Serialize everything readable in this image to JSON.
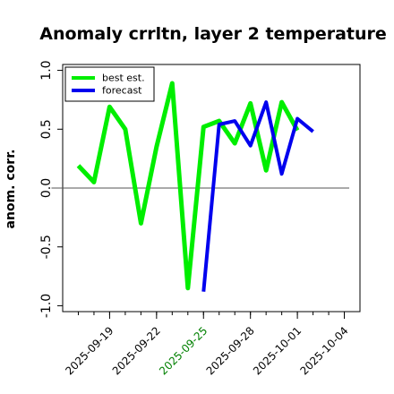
{
  "chart_data": {
    "type": "line",
    "title": "Anomaly crrltn, layer 2 temperature",
    "xlabel": "",
    "ylabel": "anom. corr.",
    "x": [
      "2025-09-17",
      "2025-09-18",
      "2025-09-19",
      "2025-09-20",
      "2025-09-21",
      "2025-09-22",
      "2025-09-23",
      "2025-09-24",
      "2025-09-25",
      "2025-09-26",
      "2025-09-27",
      "2025-09-28",
      "2025-09-29",
      "2025-09-30",
      "2025-10-01",
      "2025-10-02",
      "2025-10-03",
      "2025-10-04"
    ],
    "xlim": [
      "2025-09-16",
      "2025-10-05"
    ],
    "ylim": [
      -1.05,
      1.05
    ],
    "y_ticks": [
      -1.0,
      -0.5,
      0.0,
      0.5,
      1.0
    ],
    "y_tick_labels": [
      "-1.0",
      "-0.5",
      "0.0",
      "0.5",
      "1.0"
    ],
    "x_ticks": [
      "2025-09-19",
      "2025-09-22",
      "2025-09-25",
      "2025-09-28",
      "2025-10-01",
      "2025-10-04"
    ],
    "x_tick_labels": [
      "2025-09-19",
      "2025-09-22",
      "2025-09-25",
      "2025-09-28",
      "2025-10-01",
      "2025-10-04"
    ],
    "x_tick_label_colors": [
      "#000000",
      "#000000",
      "#008000",
      "#000000",
      "#000000",
      "#000000"
    ],
    "reference_line": 0.0,
    "grid": false,
    "legend_position": "top-left",
    "series": [
      {
        "name": "best est.",
        "color": "#00ee00",
        "x": [
          "2025-09-17",
          "2025-09-18",
          "2025-09-19",
          "2025-09-20",
          "2025-09-21",
          "2025-09-22",
          "2025-09-23",
          "2025-09-24",
          "2025-09-25",
          "2025-09-26",
          "2025-09-27",
          "2025-09-28",
          "2025-09-29",
          "2025-09-30",
          "2025-10-01",
          "2025-10-02"
        ],
        "values": [
          0.19,
          0.05,
          0.69,
          0.5,
          -0.3,
          0.35,
          0.89,
          -0.85,
          0.52,
          0.57,
          0.38,
          0.72,
          0.15,
          0.73,
          0.49,
          null
        ]
      },
      {
        "name": "forecast",
        "color": "#0000ee",
        "x": [
          "2025-09-25",
          "2025-09-26",
          "2025-09-27",
          "2025-09-28",
          "2025-09-29",
          "2025-09-30",
          "2025-10-01",
          "2025-10-02"
        ],
        "values": [
          -0.88,
          0.54,
          0.57,
          0.36,
          0.73,
          0.12,
          0.59,
          0.48
        ]
      }
    ]
  }
}
